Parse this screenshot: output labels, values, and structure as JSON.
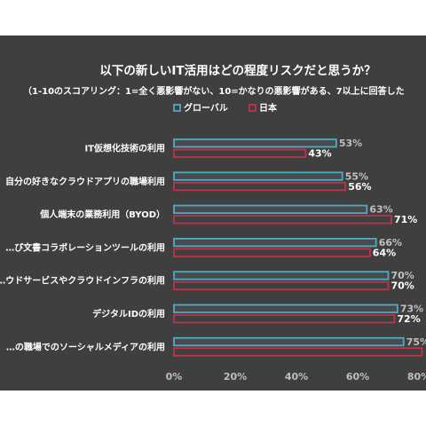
{
  "chart_data": {
    "type": "bar",
    "orientation": "horizontal",
    "title": "以下の新しいIT活用はどの程度リスクだと思うか？",
    "subtitle": "（1-10のスコアリング：1=全く悪影響がない、10=かなりの悪影響がある、7以上に回答した",
    "categories": [
      "IT仮想化技術の利用",
      "自分の好きなクラウドアプリの職場利用",
      "個人端末の業務利用（BYOD）",
      "…び文書コラボレーションツールの利用",
      "…ウドサービスやクラウドインフラの利用",
      "デジタルIDの利用",
      "…の職場でのソーシャルメディアの利用"
    ],
    "series": [
      {
        "name": "グローバル",
        "values": [
          53,
          55,
          63,
          66,
          70,
          73,
          75
        ],
        "labels": [
          "53%",
          "55%",
          "63%",
          "66%",
          "70%",
          "73%",
          "75%"
        ]
      },
      {
        "name": "日本",
        "values": [
          43,
          56,
          71,
          64,
          70,
          72,
          81
        ],
        "labels": [
          "43%",
          "56%",
          "71%",
          "64%",
          "70%",
          "72%",
          ""
        ]
      }
    ],
    "x_ticks": [
      "0%",
      "20%",
      "40%",
      "60%",
      "80%"
    ],
    "xlim": [
      0,
      80
    ],
    "legend_position": "top",
    "grid": false,
    "colors": {
      "global": "#4bacc6",
      "japan": "#c0334a",
      "global_fill": "#4a4a4a",
      "japan_fill": "#3f3f3f"
    }
  }
}
